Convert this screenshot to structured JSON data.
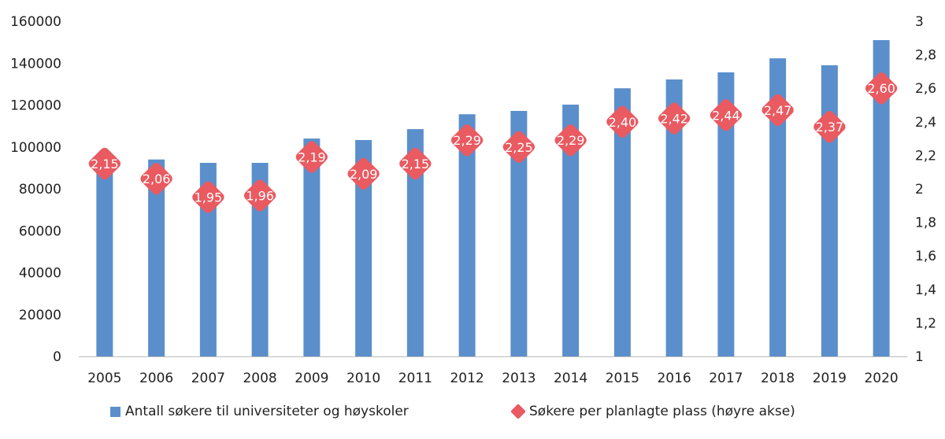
{
  "chart_data": {
    "type": "bar",
    "categories": [
      "2005",
      "2006",
      "2007",
      "2008",
      "2009",
      "2010",
      "2011",
      "2012",
      "2013",
      "2014",
      "2015",
      "2016",
      "2017",
      "2018",
      "2019",
      "2020"
    ],
    "series": [
      {
        "name": "Antall søkere til universiteter og høyskoler",
        "kind": "bar",
        "axis": "left",
        "color": "#5b8fcc",
        "values": [
          91000,
          94000,
          92400,
          92400,
          104000,
          103300,
          108500,
          115600,
          117200,
          120200,
          128000,
          132200,
          135600,
          142300,
          139000,
          151000
        ]
      },
      {
        "name": "Søkere per planlagte plass (høyre akse)",
        "kind": "marker",
        "axis": "right",
        "color": "#e95a61",
        "values": [
          2.15,
          2.06,
          1.95,
          1.96,
          2.19,
          2.09,
          2.15,
          2.29,
          2.25,
          2.29,
          2.4,
          2.42,
          2.44,
          2.47,
          2.37,
          2.6
        ],
        "labels": [
          "2,15",
          "2,06",
          "1,95",
          "1,96",
          "2,19",
          "2,09",
          "2,15",
          "2,29",
          "2,25",
          "2,29",
          "2,40",
          "2,42",
          "2,44",
          "2,47",
          "2,37",
          "2,60"
        ]
      }
    ],
    "left_axis": {
      "ylim": [
        0,
        160000
      ],
      "ticks": [
        "0",
        "20000",
        "40000",
        "60000",
        "80000",
        "100000",
        "120000",
        "140000",
        "160000"
      ]
    },
    "right_axis": {
      "ylim": [
        1,
        3
      ],
      "ticks": [
        "1",
        "1,2",
        "1,4",
        "1,6",
        "1,8",
        "2",
        "2,2",
        "2,4",
        "2,6",
        "2,8",
        "3"
      ]
    },
    "grid": false,
    "legend_position": "bottom"
  }
}
